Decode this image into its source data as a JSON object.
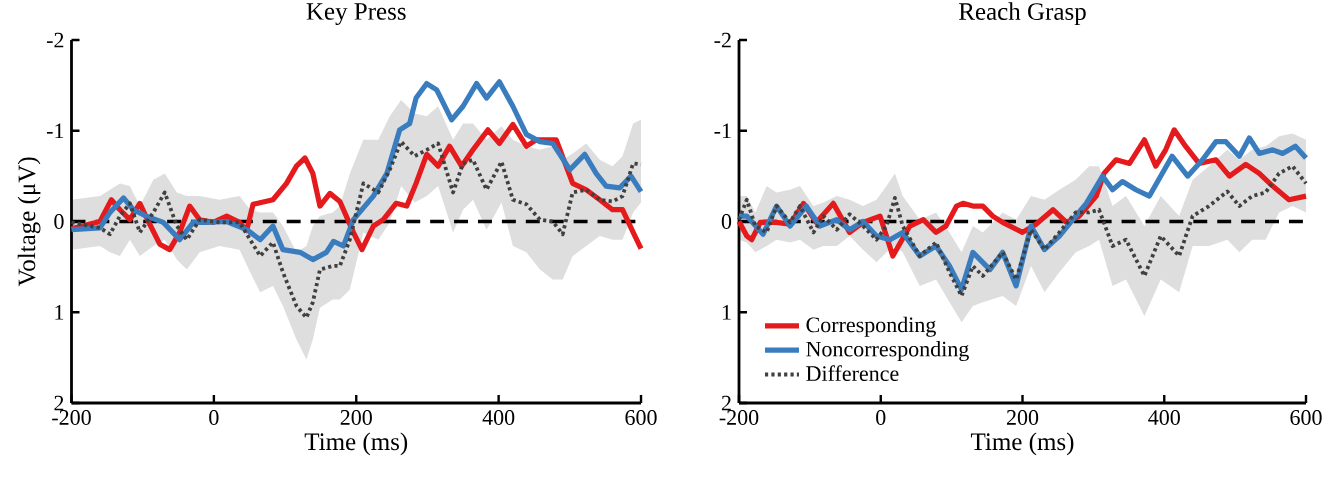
{
  "chart_data": [
    {
      "type": "line",
      "title": "Key Press",
      "xlabel": "Time (ms)",
      "ylabel": "Voltage (μV)",
      "xlim": [
        -200,
        600
      ],
      "ylim": [
        2,
        -2
      ],
      "xticks": [
        -200,
        0,
        200,
        400,
        600
      ],
      "yticks": [
        -2,
        -1,
        0,
        1,
        2
      ],
      "legend": false,
      "ref_lines": [
        {
          "axis": "y",
          "value": 0,
          "color": "#000000",
          "line_style": "dashed"
        }
      ],
      "series": [
        {
          "color": "#e41a1c",
          "x": [
            -200,
            -160,
            -144,
            -132,
            -118,
            -104,
            -92,
            -76,
            -62,
            -48,
            -34,
            -20,
            -1,
            18,
            36,
            46,
            55,
            83,
            102,
            116,
            128,
            139,
            149,
            163,
            177,
            196,
            208,
            224,
            238,
            256,
            271,
            284,
            299,
            315,
            331,
            348,
            364,
            385,
            401,
            420,
            439,
            453,
            481,
            504,
            523,
            542,
            560,
            574,
            589,
            600
          ],
          "values": [
            0.08,
            0,
            -0.24,
            -0.13,
            -0.02,
            -0.2,
            0,
            0.25,
            0.31,
            0.12,
            -0.17,
            -0.02,
            0.01,
            -0.06,
            0.01,
            0.1,
            -0.19,
            -0.24,
            -0.42,
            -0.61,
            -0.7,
            -0.53,
            -0.17,
            -0.31,
            -0.22,
            0.12,
            0.31,
            0.05,
            -0.02,
            -0.2,
            -0.17,
            -0.42,
            -0.74,
            -0.61,
            -0.83,
            -0.61,
            -0.79,
            -1.01,
            -0.86,
            -1.07,
            -0.83,
            -0.9,
            -0.9,
            -0.42,
            -0.35,
            -0.24,
            -0.13,
            -0.13,
            0.12,
            0.3
          ]
        },
        {
          "color": "#3a7dbf",
          "x": [
            -200,
            -160,
            -146,
            -127,
            -113,
            -95,
            -71,
            -48,
            -29,
            -10,
            18,
            46,
            65,
            83,
            97,
            121,
            139,
            158,
            168,
            182,
            196,
            224,
            243,
            261,
            275,
            284,
            299,
            313,
            334,
            350,
            369,
            383,
            401,
            420,
            439,
            458,
            476,
            500,
            521,
            537,
            551,
            570,
            586,
            600
          ],
          "values": [
            0.09,
            0.07,
            -0.1,
            -0.26,
            -0.13,
            -0.06,
            0.01,
            0.2,
            0.01,
            0.01,
            0,
            0.09,
            0.2,
            0.05,
            0.31,
            0.34,
            0.42,
            0.34,
            0.22,
            0.27,
            -0.02,
            -0.28,
            -0.53,
            -1.01,
            -1.08,
            -1.36,
            -1.52,
            -1.45,
            -1.12,
            -1.27,
            -1.52,
            -1.36,
            -1.54,
            -1.27,
            -0.96,
            -0.88,
            -0.86,
            -0.57,
            -0.74,
            -0.53,
            -0.39,
            -0.37,
            -0.5,
            -0.33
          ]
        },
        {
          "color": "#404040",
          "line_style": "dotted",
          "x": [
            -200,
            -160,
            -146,
            -132,
            -118,
            -104,
            -85,
            -69,
            -52,
            -38,
            -20,
            8,
            36,
            51,
            65,
            83,
            97,
            116,
            130,
            139,
            149,
            167,
            177,
            191,
            210,
            231,
            247,
            263,
            282,
            299,
            315,
            336,
            350,
            364,
            383,
            404,
            420,
            439,
            458,
            476,
            490,
            504,
            523,
            542,
            560,
            574,
            589,
            600
          ],
          "values": [
            0.01,
            0.07,
            0.14,
            -0.06,
            -0.2,
            0.12,
            -0.1,
            -0.32,
            0.05,
            0.2,
            -0.02,
            0.01,
            0.01,
            0.2,
            0.38,
            0.23,
            0.56,
            0.93,
            1.06,
            0.89,
            0.53,
            0.49,
            0.49,
            0.2,
            -0.42,
            -0.32,
            -0.57,
            -0.88,
            -0.72,
            -0.79,
            -0.86,
            -0.32,
            -0.64,
            -0.68,
            -0.35,
            -0.66,
            -0.24,
            -0.19,
            -0.02,
            0,
            0.14,
            -0.32,
            -0.35,
            -0.24,
            -0.22,
            -0.28,
            -0.64,
            -0.63
          ],
          "lower": [
            -0.24,
            -0.28,
            -0.35,
            -0.42,
            -0.39,
            -0.17,
            -0.46,
            -0.53,
            -0.32,
            -0.28,
            -0.28,
            -0.24,
            -0.28,
            -0.13,
            -0.1,
            -0.1,
            0.05,
            0.34,
            0.27,
            0.05,
            -0.06,
            -0.1,
            -0.17,
            -0.53,
            -0.9,
            -0.9,
            -1.16,
            -1.34,
            -1.19,
            -1.16,
            -1.27,
            -0.9,
            -1.08,
            -1.08,
            -0.9,
            -1.05,
            -0.9,
            -0.83,
            -0.79,
            -0.83,
            -0.68,
            -0.75,
            -0.86,
            -0.68,
            -0.61,
            -0.72,
            -1.08,
            -1.12
          ],
          "upper": [
            0.31,
            0.27,
            0.34,
            0.38,
            0.2,
            0.38,
            0.27,
            0.2,
            0.42,
            0.53,
            0.34,
            0.27,
            0.31,
            0.56,
            0.78,
            0.71,
            0.93,
            1.3,
            1.52,
            1.3,
            0.95,
            0.86,
            0.86,
            0.75,
            0.12,
            0.2,
            0.01,
            -0.39,
            -0.21,
            -0.28,
            -0.39,
            0.12,
            -0.13,
            -0.24,
            0.09,
            -0.21,
            0.27,
            0.34,
            0.53,
            0.64,
            0.64,
            0.38,
            0.27,
            0.16,
            0.2,
            0.2,
            -0.1,
            -0.21
          ]
        }
      ]
    },
    {
      "type": "line",
      "title": "Reach Grasp",
      "xlabel": "Time (ms)",
      "xlim": [
        -200,
        600
      ],
      "ylim": [
        2,
        -2
      ],
      "xticks": [
        -200,
        0,
        200,
        400,
        600
      ],
      "yticks": [
        -2,
        -1,
        0,
        1,
        2
      ],
      "legend": "bottom left",
      "ref_lines": [
        {
          "axis": "y",
          "value": 0,
          "color": "#000000",
          "line_style": "dashed"
        }
      ],
      "series": [
        {
          "name": "Corresponding",
          "color": "#e41a1c",
          "x": [
            -200,
            -189,
            -182,
            -170,
            -147,
            -128,
            -109,
            -91,
            -67,
            -44,
            -25,
            -1,
            17,
            41,
            60,
            78,
            92,
            107,
            116,
            130,
            144,
            158,
            172,
            200,
            219,
            243,
            262,
            280,
            304,
            315,
            332,
            351,
            372,
            388,
            402,
            414,
            430,
            449,
            473,
            492,
            515,
            534,
            553,
            576,
            600
          ],
          "values": [
            0,
            0.16,
            0.2,
            0.01,
            0.01,
            0.03,
            -0.2,
            0.01,
            -0.2,
            0.12,
            0.01,
            -0.06,
            0.38,
            0.05,
            -0.02,
            0.12,
            0.05,
            -0.17,
            -0.2,
            -0.17,
            -0.17,
            -0.06,
            0.01,
            0.12,
            0.03,
            -0.13,
            0.01,
            -0.06,
            -0.28,
            -0.53,
            -0.68,
            -0.64,
            -0.9,
            -0.61,
            -0.79,
            -1.01,
            -0.83,
            -0.64,
            -0.68,
            -0.5,
            -0.63,
            -0.53,
            -0.39,
            -0.24,
            -0.28
          ]
        },
        {
          "name": "Noncorresponding",
          "color": "#3a7dbf",
          "x": [
            -200,
            -189,
            -166,
            -147,
            -128,
            -105,
            -86,
            -62,
            -44,
            -25,
            -6,
            13,
            31,
            55,
            78,
            97,
            114,
            130,
            154,
            172,
            191,
            212,
            231,
            252,
            271,
            290,
            313,
            327,
            341,
            360,
            379,
            411,
            433,
            454,
            473,
            487,
            506,
            520,
            534,
            553,
            567,
            585,
            600
          ],
          "values": [
            -0.06,
            -0.06,
            0.14,
            -0.17,
            0.05,
            -0.17,
            0.05,
            -0.02,
            0.09,
            0,
            0.16,
            0.2,
            0.12,
            0.38,
            0.27,
            0.49,
            0.75,
            0.34,
            0.53,
            0.34,
            0.71,
            0.05,
            0.31,
            0.16,
            -0.02,
            -0.2,
            -0.5,
            -0.35,
            -0.44,
            -0.35,
            -0.28,
            -0.72,
            -0.5,
            -0.68,
            -0.88,
            -0.88,
            -0.72,
            -0.92,
            -0.75,
            -0.79,
            -0.75,
            -0.83,
            -0.7
          ]
        },
        {
          "name": "Difference",
          "color": "#404040",
          "line_style": "dotted",
          "x": [
            -200,
            -189,
            -177,
            -161,
            -147,
            -128,
            -114,
            -95,
            -81,
            -62,
            -44,
            -25,
            -6,
            8,
            20,
            31,
            55,
            78,
            97,
            114,
            130,
            144,
            172,
            191,
            212,
            231,
            252,
            275,
            294,
            308,
            327,
            346,
            372,
            395,
            421,
            440,
            463,
            489,
            506,
            524,
            543,
            562,
            581,
            600
          ],
          "values": [
            -0.02,
            -0.24,
            0.05,
            0.12,
            -0.17,
            0.01,
            -0.17,
            0.12,
            -0.06,
            0.09,
            -0.08,
            0.05,
            0.2,
            0.05,
            -0.26,
            0.05,
            0.38,
            0.23,
            0.56,
            0.82,
            0.49,
            0.6,
            0.34,
            0.64,
            0.09,
            0.31,
            0.12,
            -0.1,
            -0.1,
            -0.13,
            0.27,
            0.2,
            0.6,
            0.16,
            0.38,
            -0.06,
            -0.17,
            -0.33,
            -0.17,
            -0.28,
            -0.32,
            -0.53,
            -0.61,
            -0.42
          ],
          "lower": [
            -0.28,
            -0.28,
            -0.1,
            -0.39,
            -0.32,
            -0.35,
            -0.39,
            -0.17,
            -0.21,
            -0.28,
            -0.24,
            -0.17,
            -0.24,
            -0.39,
            -0.53,
            -0.28,
            -0.02,
            -0.1,
            0.12,
            0.34,
            0.05,
            0.12,
            -0.1,
            -0.02,
            -0.28,
            -0.24,
            -0.35,
            -0.46,
            -0.61,
            -0.61,
            -0.17,
            -0.28,
            0.05,
            -0.28,
            -0.06,
            -0.46,
            -0.61,
            -0.79,
            -0.68,
            -0.79,
            -0.83,
            -0.94,
            -0.97,
            -0.9
          ],
          "upper": [
            0.2,
            0.23,
            0.34,
            0.27,
            0.2,
            0.23,
            0.2,
            0.31,
            0.27,
            0.27,
            0.16,
            0.31,
            0.45,
            0.34,
            0.27,
            0.34,
            0.71,
            0.64,
            0.89,
            1.11,
            0.93,
            0.89,
            0.82,
            0.93,
            0.49,
            0.78,
            0.56,
            0.34,
            0.27,
            0.2,
            0.71,
            0.64,
            1.04,
            0.64,
            0.78,
            0.27,
            0.27,
            0.2,
            0.34,
            0.2,
            0.2,
            -0.1,
            -0.17,
            -0.1
          ]
        }
      ]
    }
  ]
}
